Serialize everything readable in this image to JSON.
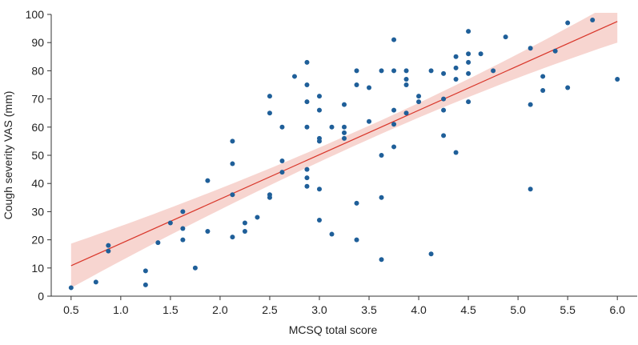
{
  "chart_data": {
    "type": "scatter",
    "title": "",
    "xlabel": "MCSQ total score",
    "ylabel": "Cough severity VAS (mm)",
    "xlim": [
      0.3,
      6.2
    ],
    "ylim": [
      0,
      100
    ],
    "grid": false,
    "x_ticks": [
      0.5,
      1.0,
      1.5,
      2.0,
      2.5,
      3.0,
      3.5,
      4.0,
      4.5,
      5.0,
      5.5,
      6.0
    ],
    "x_tick_labels": [
      "0.5",
      "1.0",
      "1.5",
      "2.0",
      "2.5",
      "3.0",
      "3.5",
      "4.0",
      "4.5",
      "5.0",
      "5.5",
      "6.0"
    ],
    "y_ticks": [
      0,
      10,
      20,
      30,
      40,
      50,
      60,
      70,
      80,
      90,
      100
    ],
    "y_tick_labels": [
      "0",
      "10",
      "20",
      "30",
      "40",
      "50",
      "60",
      "70",
      "80",
      "90",
      "100"
    ],
    "colors": {
      "points": "#1f5f99",
      "fit_line": "#d9372b",
      "confidence_band": "#f4c7c0",
      "axis": "#333333"
    },
    "fit": {
      "type": "linear",
      "x": [
        0.5,
        6.0
      ],
      "y": [
        10.8,
        97.5
      ],
      "ci_lower": [
        3.0,
        90.0
      ],
      "ci_upper": [
        18.7,
        105.0
      ],
      "ci_mid_x": 3.5,
      "ci_mid_half_width": 2.4
    },
    "points": [
      [
        0.5,
        3
      ],
      [
        0.75,
        5
      ],
      [
        0.875,
        18
      ],
      [
        0.875,
        16
      ],
      [
        1.25,
        9
      ],
      [
        1.25,
        4
      ],
      [
        1.375,
        19
      ],
      [
        1.5,
        26
      ],
      [
        1.625,
        30
      ],
      [
        1.625,
        24
      ],
      [
        1.625,
        20
      ],
      [
        1.75,
        10
      ],
      [
        1.875,
        41
      ],
      [
        1.875,
        23
      ],
      [
        2.125,
        55
      ],
      [
        2.125,
        47
      ],
      [
        2.125,
        36
      ],
      [
        2.125,
        21
      ],
      [
        2.25,
        26
      ],
      [
        2.25,
        23
      ],
      [
        2.375,
        28
      ],
      [
        2.5,
        71
      ],
      [
        2.5,
        65
      ],
      [
        2.5,
        36
      ],
      [
        2.5,
        35
      ],
      [
        2.625,
        60
      ],
      [
        2.625,
        48
      ],
      [
        2.625,
        44
      ],
      [
        2.75,
        78
      ],
      [
        2.875,
        83
      ],
      [
        2.875,
        75
      ],
      [
        2.875,
        69
      ],
      [
        2.875,
        60
      ],
      [
        2.875,
        45
      ],
      [
        2.875,
        42
      ],
      [
        2.875,
        39
      ],
      [
        3.0,
        71
      ],
      [
        3.0,
        66
      ],
      [
        3.0,
        56
      ],
      [
        3.0,
        55
      ],
      [
        3.0,
        38
      ],
      [
        3.0,
        27
      ],
      [
        3.125,
        60
      ],
      [
        3.125,
        22
      ],
      [
        3.25,
        68
      ],
      [
        3.25,
        60
      ],
      [
        3.25,
        58
      ],
      [
        3.25,
        56
      ],
      [
        3.375,
        80
      ],
      [
        3.375,
        75
      ],
      [
        3.375,
        33
      ],
      [
        3.375,
        20
      ],
      [
        3.5,
        74
      ],
      [
        3.5,
        62
      ],
      [
        3.625,
        80
      ],
      [
        3.625,
        50
      ],
      [
        3.625,
        35
      ],
      [
        3.625,
        13
      ],
      [
        3.75,
        91
      ],
      [
        3.75,
        80
      ],
      [
        3.75,
        66
      ],
      [
        3.75,
        61
      ],
      [
        3.75,
        53
      ],
      [
        3.875,
        80
      ],
      [
        3.875,
        77
      ],
      [
        3.875,
        75
      ],
      [
        3.875,
        65
      ],
      [
        4.0,
        71
      ],
      [
        4.0,
        69
      ],
      [
        4.125,
        80
      ],
      [
        4.125,
        15
      ],
      [
        4.25,
        79
      ],
      [
        4.25,
        70
      ],
      [
        4.25,
        66
      ],
      [
        4.25,
        57
      ],
      [
        4.375,
        85
      ],
      [
        4.375,
        81
      ],
      [
        4.375,
        77
      ],
      [
        4.375,
        51
      ],
      [
        4.5,
        94
      ],
      [
        4.5,
        86
      ],
      [
        4.5,
        83
      ],
      [
        4.5,
        79
      ],
      [
        4.5,
        69
      ],
      [
        4.625,
        86
      ],
      [
        4.75,
        80
      ],
      [
        4.875,
        92
      ],
      [
        5.125,
        88
      ],
      [
        5.125,
        68
      ],
      [
        5.125,
        38
      ],
      [
        5.25,
        78
      ],
      [
        5.25,
        73
      ],
      [
        5.375,
        87
      ],
      [
        5.5,
        97
      ],
      [
        5.5,
        74
      ],
      [
        5.75,
        98
      ],
      [
        6.0,
        77
      ]
    ]
  }
}
